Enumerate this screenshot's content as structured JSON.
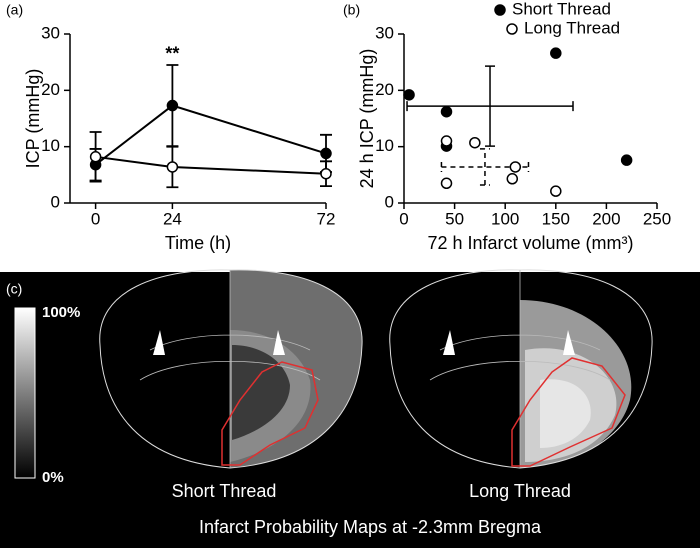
{
  "chart_data": [
    {
      "type": "line",
      "label": "(a)",
      "y_label": "ICP (mmHg)",
      "x_label": "Time (h)",
      "annotation": "**",
      "annotation_x": 24,
      "x": [
        0,
        24,
        72
      ],
      "xlim": [
        -8,
        72
      ],
      "xticks": [
        0,
        24,
        72
      ],
      "ylim": [
        0,
        30
      ],
      "yticks": [
        0,
        10,
        20,
        30
      ],
      "series": [
        {
          "color": "#000000",
          "marker_fill": "#000000",
          "values": [
            6.8,
            17.3,
            8.8
          ],
          "errors": [
            2.8,
            7.2,
            3.3
          ]
        },
        {
          "color": "#000000",
          "marker_fill": "#ffffff",
          "values": [
            8.2,
            6.4,
            5.2
          ],
          "errors": [
            4.4,
            3.6,
            2.2
          ]
        }
      ]
    },
    {
      "type": "scatter",
      "label": "(b)",
      "y_label": "24 h ICP (mmHg)",
      "x_label": "72 h Infarct volume (mm³)",
      "xlim": [
        0,
        250
      ],
      "xticks": [
        0,
        50,
        100,
        150,
        200,
        250
      ],
      "ylim": [
        0,
        30
      ],
      "yticks": [
        0,
        10,
        20,
        30
      ],
      "legend": "upper right",
      "series": [
        {
          "name": "Short Thread",
          "color": "#000000",
          "marker_fill": "#000000",
          "x": [
            5,
            42,
            42,
            150,
            220
          ],
          "values": [
            19.2,
            16.2,
            10.1,
            26.6,
            7.6
          ],
          "mean_x": 85,
          "mean_y": 17.2,
          "sd_x": 82,
          "sd_y": 7.1,
          "line_style": "solid"
        },
        {
          "name": "Long Thread",
          "color": "#000000",
          "marker_fill": "#ffffff",
          "x": [
            42,
            42,
            70,
            110,
            107,
            150
          ],
          "values": [
            11,
            3.5,
            10.7,
            6.4,
            4.3,
            2.1
          ],
          "mean_x": 80,
          "mean_y": 6.4,
          "sd_x": 43,
          "sd_y": 3.2,
          "line_style": "dashed"
        }
      ]
    }
  ],
  "panel_c": {
    "label": "(c)",
    "colorbar_top": "100%",
    "colorbar_bottom": "0%",
    "left_caption": "Short Thread",
    "right_caption": "Long Thread",
    "title": "Infarct Probability Maps at -2.3mm Bregma"
  }
}
